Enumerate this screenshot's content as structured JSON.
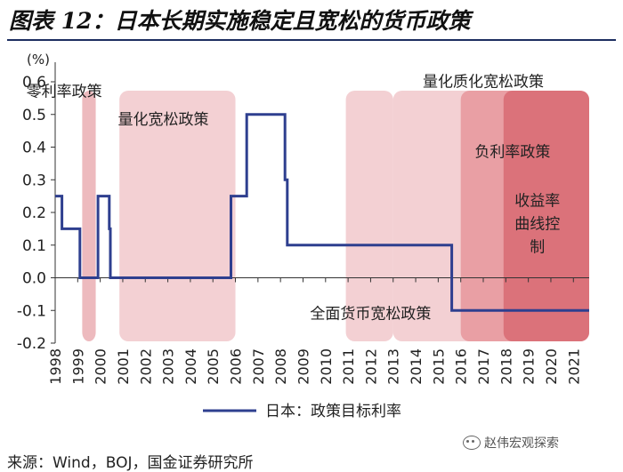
{
  "figure": {
    "title": "图表 12：日本长期实施稳定且宽松的货币政策",
    "source": "来源：Wind，BOJ，国金证券研究所",
    "watermark": "赵伟宏观探索",
    "watermark_icon": "wechat-icon"
  },
  "chart_data": {
    "type": "line",
    "title": "",
    "xlabel": "",
    "ylabel": "(%)",
    "xlim": [
      1998.0,
      2021.7
    ],
    "ylim": [
      -0.2,
      0.6
    ],
    "grid": false,
    "legend_position": "bottom",
    "y_ticks": [
      "-0.2",
      "-0.1",
      "0.0",
      "0.1",
      "0.2",
      "0.3",
      "0.4",
      "0.5",
      "0.6"
    ],
    "x_ticks": [
      "1998",
      "1999",
      "2000",
      "2001",
      "2002",
      "2003",
      "2004",
      "2005",
      "2006",
      "2007",
      "2008",
      "2009",
      "2010",
      "2011",
      "2012",
      "2013",
      "2014",
      "2015",
      "2016",
      "2017",
      "2018",
      "2019",
      "2020",
      "2021"
    ],
    "series": [
      {
        "name": "日本：政策目标利率",
        "color": "#2e3f8f",
        "points": [
          [
            1998.0,
            0.25
          ],
          [
            1998.3,
            0.25
          ],
          [
            1998.3,
            0.15
          ],
          [
            1999.1,
            0.15
          ],
          [
            1999.1,
            0.0
          ],
          [
            1999.9,
            0.0
          ],
          [
            1999.9,
            0.25
          ],
          [
            2000.4,
            0.25
          ],
          [
            2000.4,
            0.15
          ],
          [
            2000.45,
            0.15
          ],
          [
            2000.45,
            0.0
          ],
          [
            2005.8,
            0.0
          ],
          [
            2005.8,
            0.25
          ],
          [
            2006.5,
            0.25
          ],
          [
            2006.5,
            0.5
          ],
          [
            2008.2,
            0.5
          ],
          [
            2008.2,
            0.3
          ],
          [
            2008.3,
            0.3
          ],
          [
            2008.3,
            0.1
          ],
          [
            2015.6,
            0.1
          ],
          [
            2015.6,
            -0.1
          ],
          [
            2021.7,
            -0.1
          ]
        ]
      }
    ],
    "regions": [
      {
        "label": "零利率政策",
        "start": 1999.2,
        "end": 1999.8,
        "color": "#e9a9ae",
        "opacity": 0.8,
        "label_x": 1998.4,
        "label_y": 0.555
      },
      {
        "label": "量化宽松政策",
        "start": 2000.85,
        "end": 2006.0,
        "color": "#e9a9ae",
        "opacity": 0.55,
        "label_x": 2002.8,
        "label_y": 0.47
      },
      {
        "label": "全面货币宽松政策",
        "start": 2010.9,
        "end": 2013.0,
        "color": "#e9a9ae",
        "opacity": 0.55,
        "label_x": 2012.0,
        "label_y": -0.125
      },
      {
        "label": "量化质化宽松政策",
        "start": 2013.0,
        "end": 2021.7,
        "color": "#e9a9ae",
        "opacity": 0.55,
        "label_x": 2017.0,
        "label_y": 0.585
      },
      {
        "label": "负利率政策",
        "start": 2016.0,
        "end": 2021.7,
        "color": "#e37e86",
        "opacity": 0.6,
        "label_x": 2018.3,
        "label_y": 0.37
      },
      {
        "label": "收益率曲线控制",
        "start": 2017.9,
        "end": 2021.7,
        "color": "#d45a64",
        "opacity": 0.65,
        "label_x": 2019.4,
        "label_y": 0.22
      }
    ]
  }
}
